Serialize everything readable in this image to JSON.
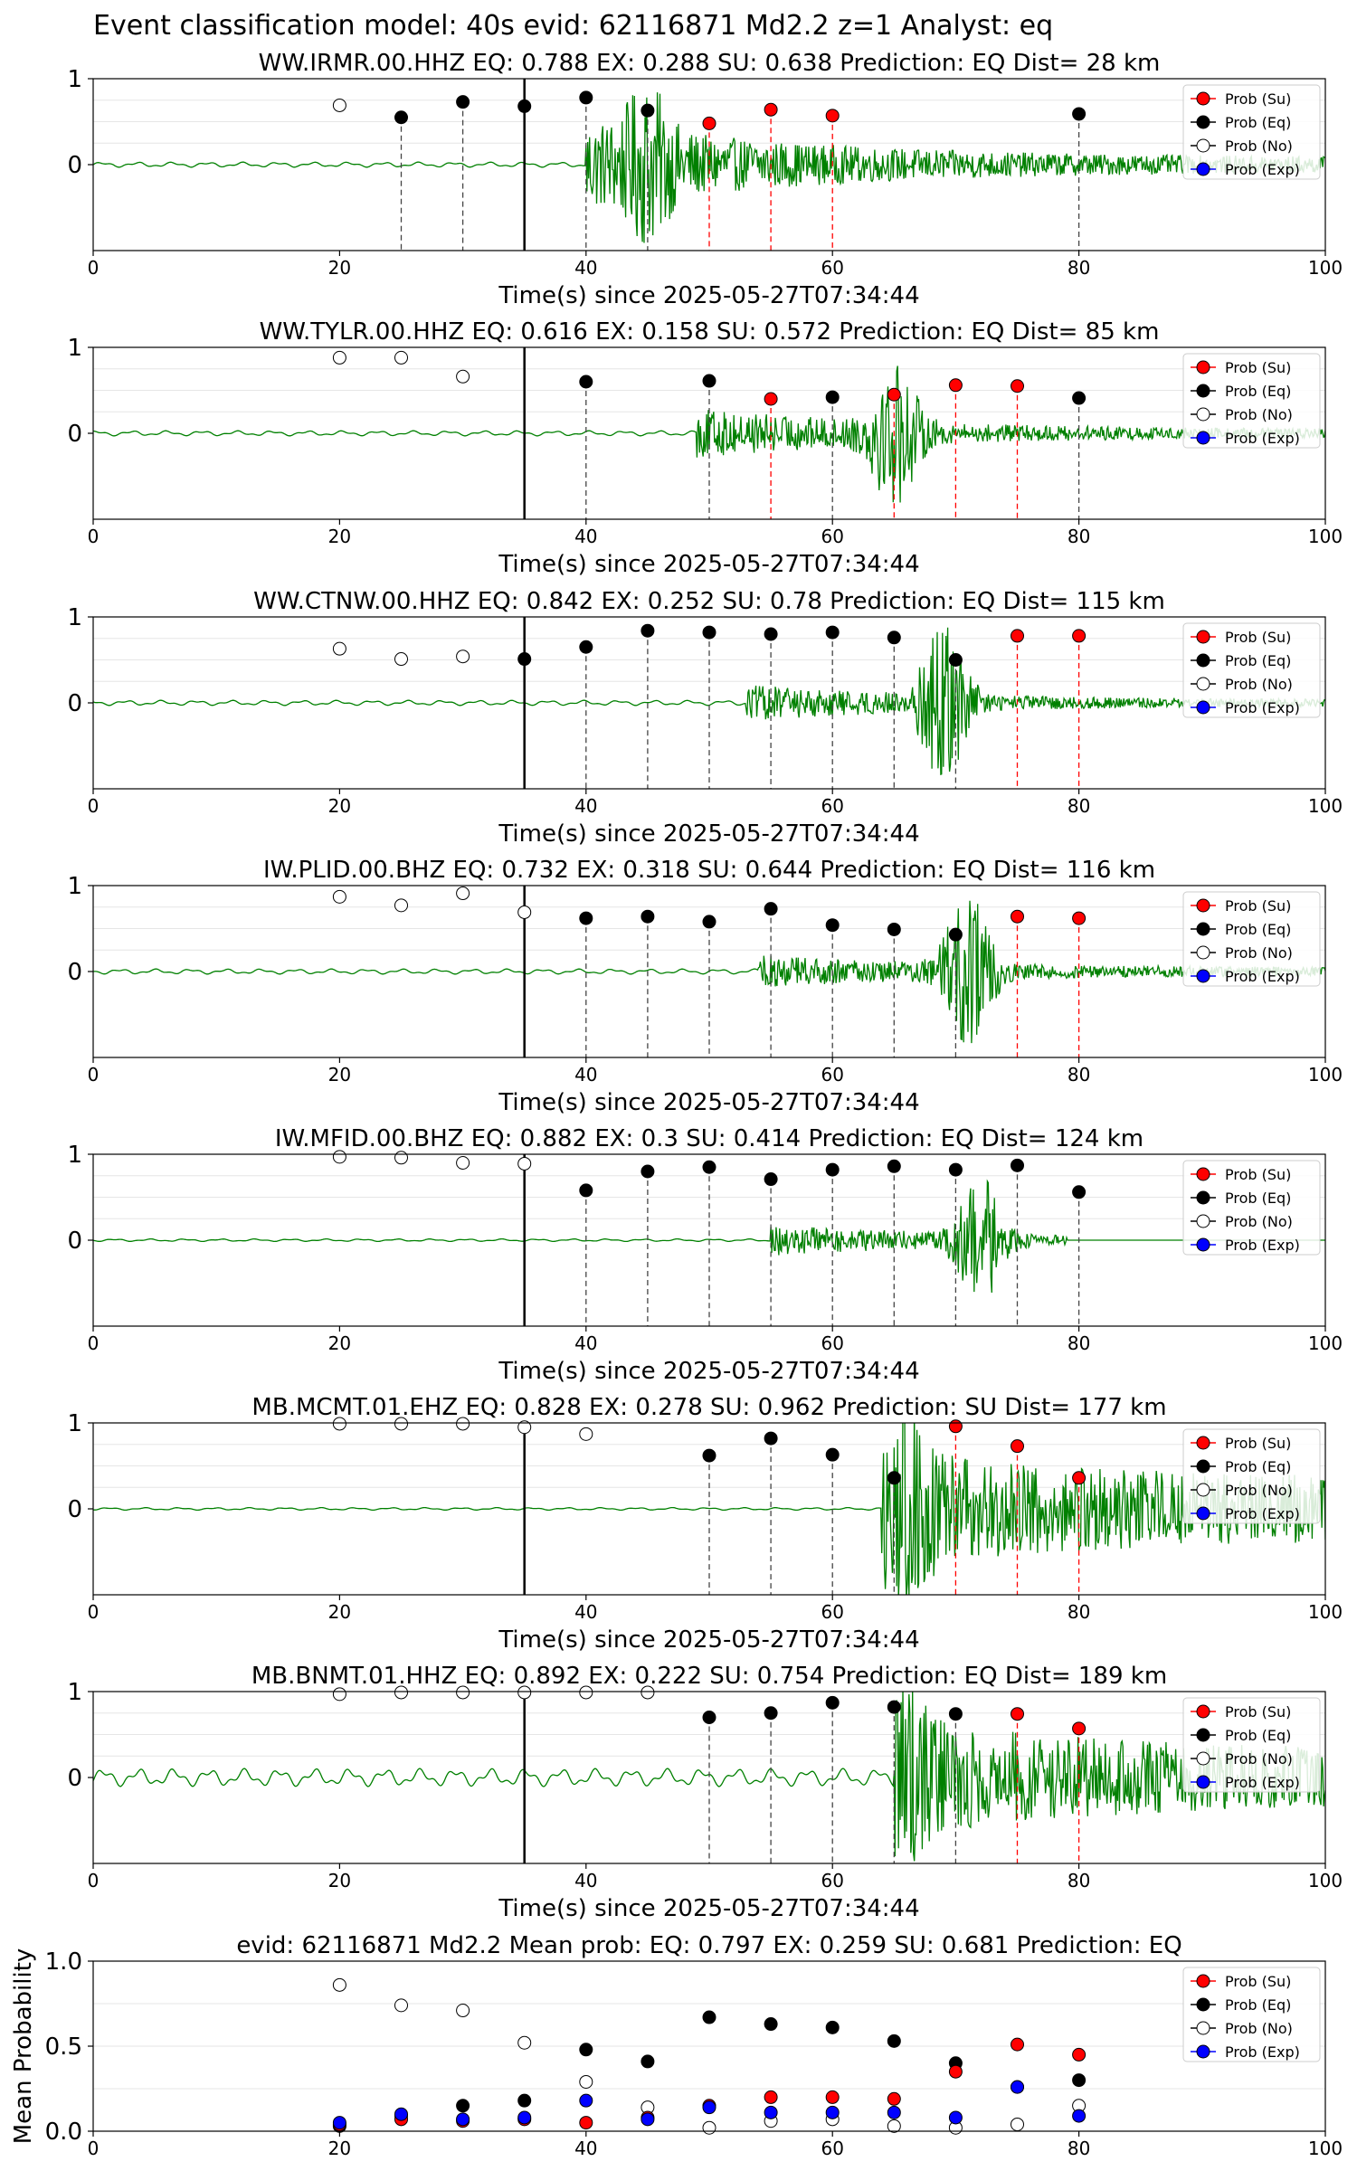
{
  "figure_title": "Event classification model: 40s evid: 62116871 Md2.2 z=1 Analyst: eq",
  "legend_labels": [
    "Prob (Su)",
    "Prob (Eq)",
    "Prob (No)",
    "Prob (Exp)"
  ],
  "colors": {
    "trace": "#008000",
    "su": "#ff0000",
    "eq": "#000000",
    "no": "#ffffff",
    "exp": "#0000ff",
    "su_line": "#ff0000",
    "eq_line": "#444444"
  },
  "chart_data": [
    {
      "type": "scatter",
      "title": "WW.IRMR.00.HHZ   EQ: 0.788  EX: 0.288  SU: 0.638   Prediction: EQ    Dist= 28 km",
      "xlabel": "Time(s) since 2025-05-27T07:34:44",
      "ylabel": "",
      "xlim": [
        0,
        100
      ],
      "ylim": [
        -1,
        1
      ],
      "x_ticks": [
        "0",
        "20",
        "40",
        "60",
        "80",
        "100"
      ],
      "y_ticks": [
        "1",
        "0"
      ],
      "legend_position": "top-right",
      "window_start": 35,
      "trace": {
        "onset": 40,
        "amp_pre": 0.02,
        "amp_post": 0.45,
        "peak_at": 45,
        "peak_amp": 1.0,
        "tail_amp": 0.08,
        "end": 100
      },
      "series": [
        {
          "name": "Prob (Su)",
          "x": [
            50,
            55,
            60
          ],
          "y": [
            0.48,
            0.64,
            0.57
          ]
        },
        {
          "name": "Prob (Eq)",
          "x": [
            25,
            30,
            35,
            40,
            45,
            80
          ],
          "y": [
            0.55,
            0.73,
            0.68,
            0.78,
            0.63,
            0.59
          ]
        },
        {
          "name": "Prob (No)",
          "x": [
            20
          ],
          "y": [
            0.69
          ]
        },
        {
          "name": "Prob (Exp)",
          "x": [],
          "y": []
        }
      ]
    },
    {
      "type": "scatter",
      "title": "WW.TYLR.00.HHZ   EQ: 0.616  EX: 0.158  SU: 0.572   Prediction: EQ    Dist= 85 km",
      "xlabel": "Time(s) since 2025-05-27T07:34:44",
      "ylabel": "",
      "xlim": [
        0,
        100
      ],
      "ylim": [
        -1,
        1
      ],
      "x_ticks": [
        "0",
        "20",
        "40",
        "60",
        "80",
        "100"
      ],
      "y_ticks": [
        "1",
        "0"
      ],
      "legend_position": "top-right",
      "window_start": 35,
      "trace": {
        "onset": 49,
        "amp_pre": 0.02,
        "amp_post": 0.25,
        "peak_at": 65,
        "peak_amp": 1.0,
        "tail_amp": 0.04,
        "end": 100
      },
      "series": [
        {
          "name": "Prob (Su)",
          "x": [
            55,
            65,
            70,
            75
          ],
          "y": [
            0.4,
            0.45,
            0.56,
            0.55
          ]
        },
        {
          "name": "Prob (Eq)",
          "x": [
            40,
            50,
            60,
            80
          ],
          "y": [
            0.6,
            0.61,
            0.42,
            0.41
          ]
        },
        {
          "name": "Prob (No)",
          "x": [
            20,
            25,
            30
          ],
          "y": [
            0.88,
            0.88,
            0.66
          ]
        },
        {
          "name": "Prob (Exp)",
          "x": [],
          "y": []
        }
      ]
    },
    {
      "type": "scatter",
      "title": "WW.CTNW.00.HHZ   EQ: 0.842  EX: 0.252  SU: 0.78   Prediction: EQ    Dist= 115 km",
      "xlabel": "Time(s) since 2025-05-27T07:34:44",
      "ylabel": "",
      "xlim": [
        0,
        100
      ],
      "ylim": [
        -1,
        1
      ],
      "x_ticks": [
        "0",
        "20",
        "40",
        "60",
        "80",
        "100"
      ],
      "y_ticks": [
        "1",
        "0"
      ],
      "legend_position": "top-right",
      "window_start": 35,
      "trace": {
        "onset": 53,
        "amp_pre": 0.02,
        "amp_post": 0.18,
        "peak_at": 69,
        "peak_amp": 1.0,
        "tail_amp": 0.03,
        "end": 100
      },
      "series": [
        {
          "name": "Prob (Su)",
          "x": [
            75,
            80
          ],
          "y": [
            0.78,
            0.78
          ]
        },
        {
          "name": "Prob (Eq)",
          "x": [
            35,
            40,
            45,
            50,
            55,
            60,
            65,
            70
          ],
          "y": [
            0.51,
            0.65,
            0.84,
            0.82,
            0.8,
            0.82,
            0.76,
            0.5
          ]
        },
        {
          "name": "Prob (No)",
          "x": [
            20,
            25,
            30
          ],
          "y": [
            0.63,
            0.51,
            0.54
          ]
        },
        {
          "name": "Prob (Exp)",
          "x": [],
          "y": []
        }
      ]
    },
    {
      "type": "scatter",
      "title": "IW.PLID.00.BHZ   EQ: 0.732  EX: 0.318  SU: 0.644   Prediction: EQ    Dist= 116 km",
      "xlabel": "Time(s) since 2025-05-27T07:34:44",
      "ylabel": "",
      "xlim": [
        0,
        100
      ],
      "ylim": [
        -1,
        1
      ],
      "x_ticks": [
        "0",
        "20",
        "40",
        "60",
        "80",
        "100"
      ],
      "y_ticks": [
        "1",
        "0"
      ],
      "legend_position": "top-right",
      "window_start": 35,
      "trace": {
        "onset": 54,
        "amp_pre": 0.02,
        "amp_post": 0.15,
        "peak_at": 71,
        "peak_amp": 1.0,
        "tail_amp": 0.04,
        "end": 100
      },
      "series": [
        {
          "name": "Prob (Su)",
          "x": [
            75,
            80
          ],
          "y": [
            0.64,
            0.62
          ]
        },
        {
          "name": "Prob (Eq)",
          "x": [
            40,
            45,
            50,
            55,
            60,
            65,
            70
          ],
          "y": [
            0.62,
            0.64,
            0.58,
            0.73,
            0.54,
            0.49,
            0.43
          ]
        },
        {
          "name": "Prob (No)",
          "x": [
            20,
            25,
            30,
            35
          ],
          "y": [
            0.87,
            0.77,
            0.91,
            0.69
          ]
        },
        {
          "name": "Prob (Exp)",
          "x": [],
          "y": []
        }
      ]
    },
    {
      "type": "scatter",
      "title": "IW.MFID.00.BHZ   EQ: 0.882  EX: 0.3  SU: 0.414   Prediction: EQ    Dist= 124 km",
      "xlabel": "Time(s) since 2025-05-27T07:34:44",
      "ylabel": "",
      "xlim": [
        0,
        100
      ],
      "ylim": [
        -1,
        1
      ],
      "x_ticks": [
        "0",
        "20",
        "40",
        "60",
        "80",
        "100"
      ],
      "y_ticks": [
        "1",
        "0"
      ],
      "legend_position": "top-right",
      "window_start": 35,
      "trace": {
        "onset": 55,
        "amp_pre": 0.01,
        "amp_post": 0.18,
        "peak_at": 72,
        "peak_amp": 0.85,
        "tail_amp": 0.01,
        "end": 79
      },
      "series": [
        {
          "name": "Prob (Su)",
          "x": [],
          "y": []
        },
        {
          "name": "Prob (Eq)",
          "x": [
            40,
            45,
            50,
            55,
            60,
            65,
            70,
            75,
            80
          ],
          "y": [
            0.58,
            0.8,
            0.85,
            0.71,
            0.82,
            0.86,
            0.82,
            0.87,
            0.56
          ]
        },
        {
          "name": "Prob (No)",
          "x": [
            20,
            25,
            30,
            35
          ],
          "y": [
            0.97,
            0.96,
            0.9,
            0.89
          ]
        },
        {
          "name": "Prob (Exp)",
          "x": [],
          "y": []
        }
      ]
    },
    {
      "type": "scatter",
      "title": "MB.MCMT.01.EHZ   EQ: 0.828  EX: 0.278  SU: 0.962   Prediction: SU    Dist= 177 km",
      "xlabel": "Time(s) since 2025-05-27T07:34:44",
      "ylabel": "",
      "xlim": [
        0,
        100
      ],
      "ylim": [
        -1,
        1
      ],
      "x_ticks": [
        "0",
        "20",
        "40",
        "60",
        "80",
        "100"
      ],
      "y_ticks": [
        "1",
        "0"
      ],
      "legend_position": "top-right",
      "window_start": 35,
      "trace": {
        "onset": 64,
        "amp_pre": 0.01,
        "amp_post": 0.35,
        "peak_at": 66,
        "peak_amp": 0.95,
        "tail_amp": 0.35,
        "end": 100
      },
      "series": [
        {
          "name": "Prob (Su)",
          "x": [
            70,
            75,
            80
          ],
          "y": [
            0.96,
            0.73,
            0.36
          ]
        },
        {
          "name": "Prob (Eq)",
          "x": [
            50,
            55,
            60,
            65
          ],
          "y": [
            0.62,
            0.82,
            0.63,
            0.36
          ]
        },
        {
          "name": "Prob (No)",
          "x": [
            20,
            25,
            30,
            35,
            40
          ],
          "y": [
            0.99,
            0.99,
            0.99,
            0.95,
            0.87
          ]
        },
        {
          "name": "Prob (Exp)",
          "x": [],
          "y": []
        }
      ]
    },
    {
      "type": "scatter",
      "title": "MB.BNMT.01.HHZ   EQ: 0.892  EX: 0.222  SU: 0.754   Prediction: EQ    Dist= 189 km",
      "xlabel": "Time(s) since 2025-05-27T07:34:44",
      "ylabel": "",
      "xlim": [
        0,
        100
      ],
      "ylim": [
        -1,
        1
      ],
      "x_ticks": [
        "0",
        "20",
        "40",
        "60",
        "80",
        "100"
      ],
      "y_ticks": [
        "1",
        "0"
      ],
      "legend_position": "top-right",
      "window_start": 35,
      "trace": {
        "onset": 65,
        "amp_pre": 0.07,
        "amp_post": 0.4,
        "peak_at": 66,
        "peak_amp": 0.85,
        "tail_amp": 0.3,
        "end": 100
      },
      "series": [
        {
          "name": "Prob (Su)",
          "x": [
            75,
            80
          ],
          "y": [
            0.74,
            0.57
          ]
        },
        {
          "name": "Prob (Eq)",
          "x": [
            50,
            55,
            60,
            65,
            70
          ],
          "y": [
            0.7,
            0.75,
            0.87,
            0.82,
            0.74
          ]
        },
        {
          "name": "Prob (No)",
          "x": [
            20,
            25,
            30,
            35,
            40,
            45
          ],
          "y": [
            0.97,
            0.99,
            0.99,
            0.99,
            0.99,
            0.99
          ]
        },
        {
          "name": "Prob (Exp)",
          "x": [],
          "y": []
        }
      ]
    },
    {
      "type": "scatter",
      "title": "evid: 62116871  Md2.2   Mean prob:   EQ: 0.797  EX: 0.259  SU: 0.681   Prediction: EQ",
      "xlabel": "",
      "ylabel": "Mean Probability",
      "xlim": [
        0,
        100
      ],
      "ylim": [
        0,
        1
      ],
      "x_ticks": [
        "0",
        "20",
        "40",
        "60",
        "80",
        "100"
      ],
      "y_ticks": [
        "1.0",
        "0.5",
        "0.0"
      ],
      "legend_position": "top-right",
      "series": [
        {
          "name": "Prob (Su)",
          "x": [
            20,
            25,
            30,
            35,
            40,
            45,
            50,
            55,
            60,
            65,
            70,
            75,
            80
          ],
          "y": [
            0.04,
            0.07,
            0.06,
            0.07,
            0.05,
            0.08,
            0.15,
            0.2,
            0.2,
            0.19,
            0.35,
            0.51,
            0.45
          ]
        },
        {
          "name": "Prob (Eq)",
          "x": [
            20,
            25,
            30,
            35,
            40,
            45,
            50,
            55,
            60,
            65,
            70,
            75,
            80
          ],
          "y": [
            0.03,
            0.09,
            0.15,
            0.18,
            0.48,
            0.41,
            0.67,
            0.63,
            0.61,
            0.53,
            0.4,
            0.26,
            0.3
          ]
        },
        {
          "name": "Prob (No)",
          "x": [
            20,
            25,
            30,
            35,
            40,
            45,
            50,
            55,
            60,
            65,
            70,
            75,
            80
          ],
          "y": [
            0.86,
            0.74,
            0.71,
            0.52,
            0.29,
            0.14,
            0.02,
            0.06,
            0.07,
            0.03,
            0.02,
            0.04,
            0.15
          ]
        },
        {
          "name": "Prob (Exp)",
          "x": [
            20,
            25,
            30,
            35,
            40,
            45,
            50,
            55,
            60,
            65,
            70,
            75,
            80
          ],
          "y": [
            0.05,
            0.1,
            0.07,
            0.08,
            0.18,
            0.07,
            0.14,
            0.11,
            0.11,
            0.11,
            0.08,
            0.26,
            0.09
          ]
        }
      ]
    }
  ]
}
